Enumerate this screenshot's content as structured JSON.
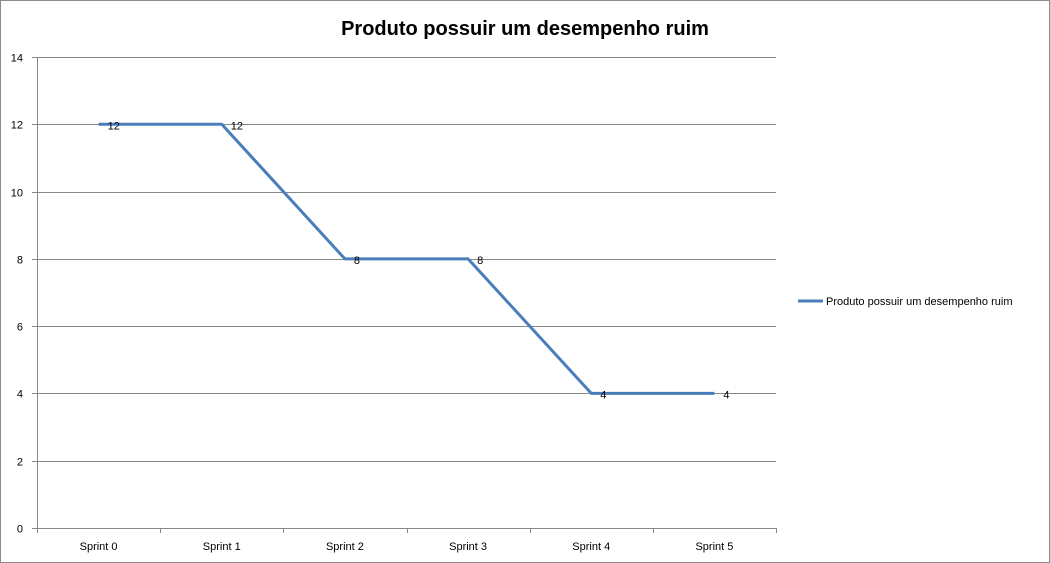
{
  "chart_data": {
    "type": "line",
    "title": "Produto possuir um desempenho ruim",
    "xlabel": "",
    "ylabel": "",
    "categories": [
      "Sprint 0",
      "Sprint 1",
      "Sprint 2",
      "Sprint 3",
      "Sprint 4",
      "Sprint 5"
    ],
    "series": [
      {
        "name": "Produto possuir um desempenho ruim",
        "values": [
          12,
          12,
          8,
          8,
          4,
          4
        ],
        "color": "#4a7ebb"
      }
    ],
    "ylim": [
      0,
      14
    ],
    "yticks": [
      "0",
      "2",
      "4",
      "6",
      "8",
      "10",
      "12",
      "14"
    ],
    "data_labels": [
      "12",
      "12",
      "8",
      "8",
      "4",
      "4"
    ],
    "grid": true,
    "gridline_color": "#868686",
    "axis_color": "#868686",
    "legend_position": "right"
  }
}
